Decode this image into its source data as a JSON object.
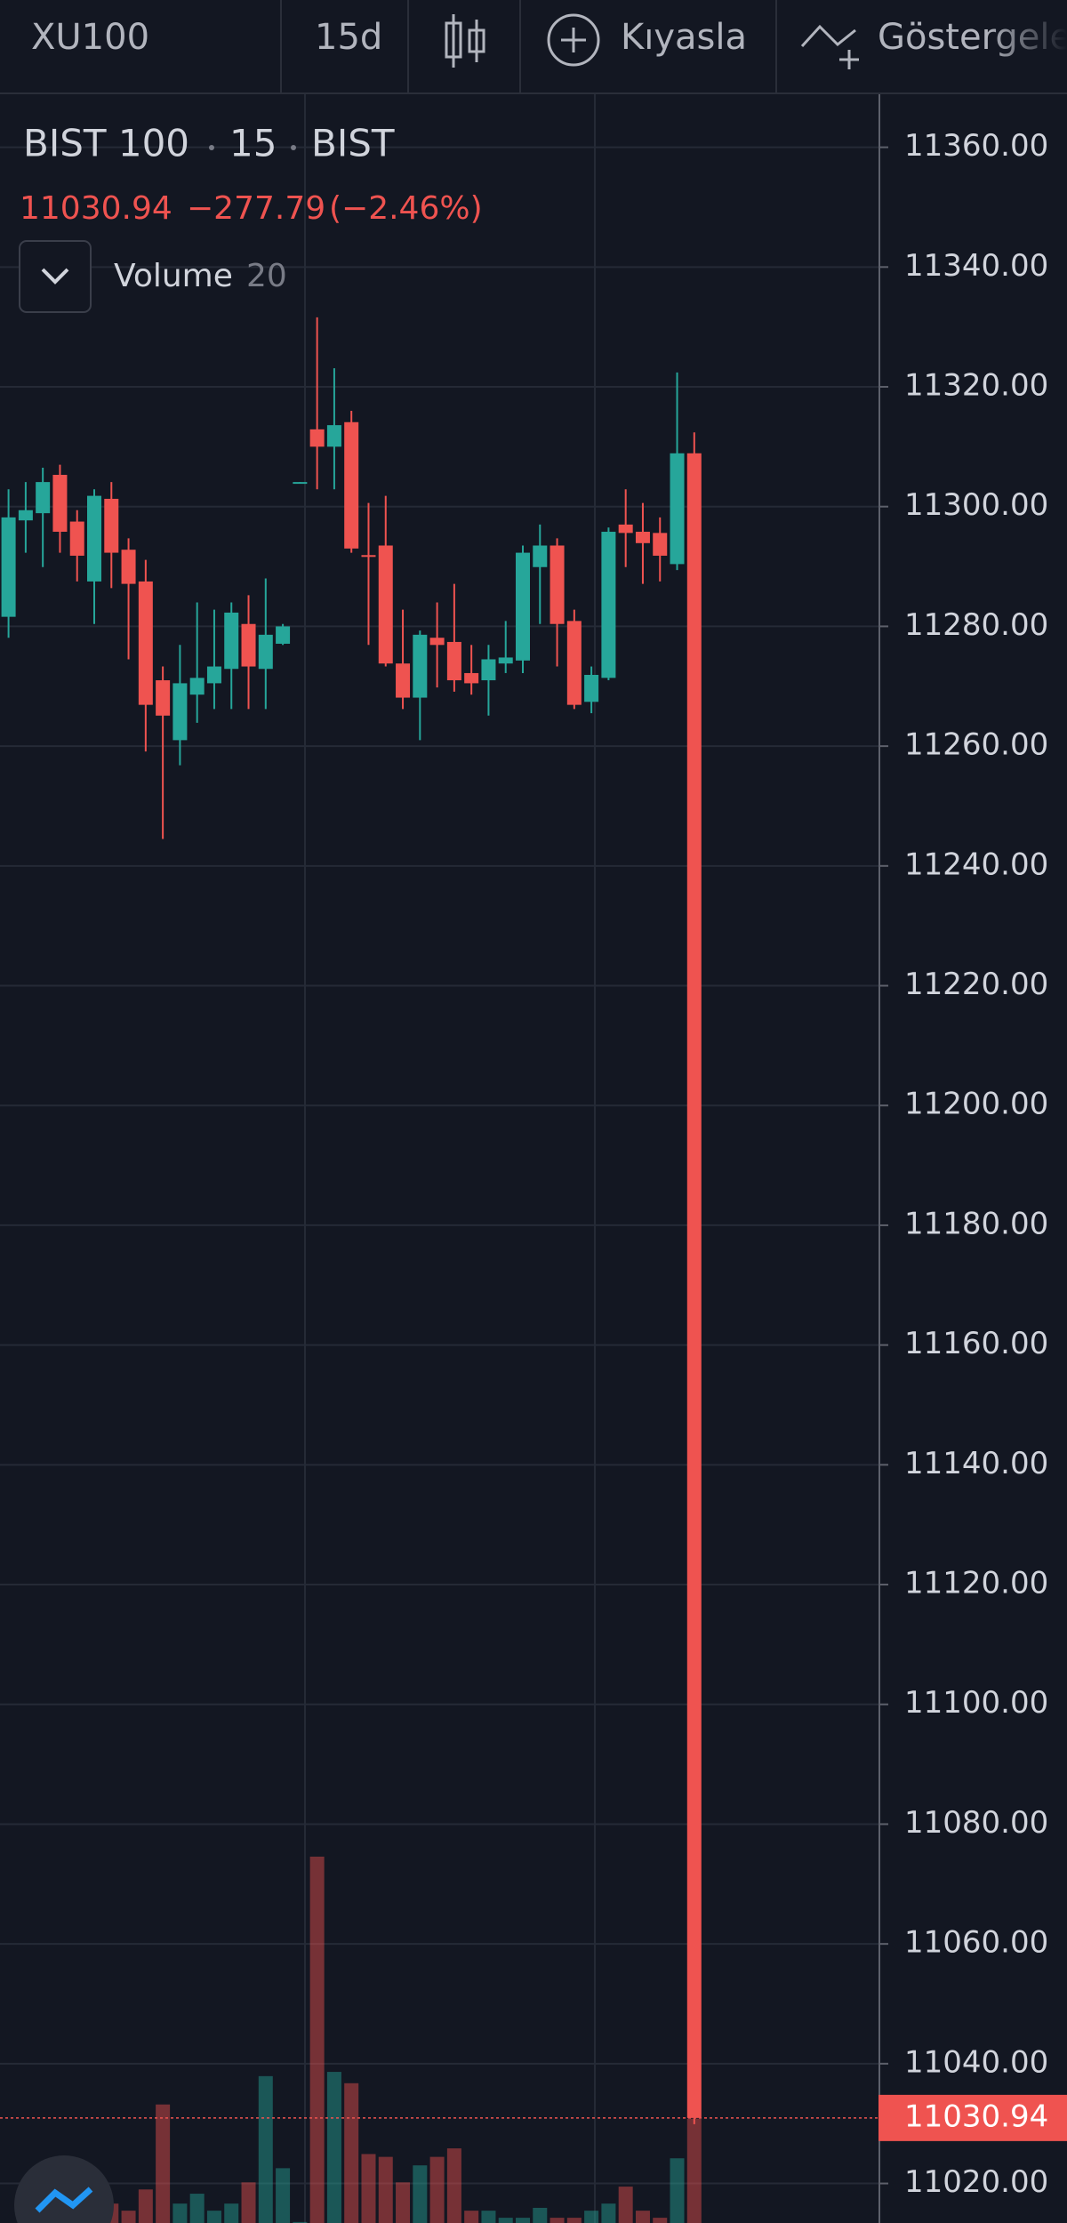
{
  "toolbar": {
    "symbol": "XU100",
    "interval": "15d",
    "compare": "Kıyasla",
    "indicators": "Göstergeler"
  },
  "chart_data": {
    "type": "candlestick",
    "title": "BIST 100",
    "interval": "15",
    "exchange": "BIST",
    "change": "−277.79",
    "change_percent": "(−2.46%)",
    "indicator": "Volume",
    "indicator_length": 20,
    "last_price": {
      "value": 11030.94,
      "label": "11030.94"
    },
    "up_color": "#26a69a",
    "down_color": "#ef5350",
    "grid": true,
    "ylim": [
      11013.4,
      11369.0
    ],
    "yticks": [
      {
        "value": 11020,
        "label": "11020.00"
      },
      {
        "value": 11040,
        "label": "11040.00"
      },
      {
        "value": 11060,
        "label": "11060.00"
      },
      {
        "value": 11080,
        "label": "11080.00"
      },
      {
        "value": 11100,
        "label": "11100.00"
      },
      {
        "value": 11120,
        "label": "11120.00"
      },
      {
        "value": 11140,
        "label": "11140.00"
      },
      {
        "value": 11160,
        "label": "11160.00"
      },
      {
        "value": 11180,
        "label": "11180.00"
      },
      {
        "value": 11200,
        "label": "11200.00"
      },
      {
        "value": 11220,
        "label": "11220.00"
      },
      {
        "value": 11240,
        "label": "11240.00"
      },
      {
        "value": 11260,
        "label": "11260.00"
      },
      {
        "value": 11280,
        "label": "11280.00"
      },
      {
        "value": 11300,
        "label": "11300.00"
      },
      {
        "value": 11320,
        "label": "11320.00"
      },
      {
        "value": 11340,
        "label": "11340.00"
      },
      {
        "value": 11360,
        "label": "11360.00"
      }
    ],
    "open": [
      11281.6,
      11297.7,
      11298.9,
      11305.3,
      11297.5,
      11287.5,
      11301.3,
      11292.8,
      11287.5,
      11271.0,
      11261.0,
      11268.6,
      11270.5,
      11272.9,
      11280.4,
      11272.9,
      11277.1,
      11304.0,
      11312.9,
      11310.0,
      11314.1,
      11291.9,
      11293.5,
      11273.8,
      11268.1,
      11278.1,
      11277.4,
      11272.2,
      11271.0,
      11273.8,
      11274.3,
      11289.9,
      11293.5,
      11280.9,
      11267.4,
      11271.4,
      11297.0,
      11295.8,
      11295.6,
      11290.4,
      11308.9
    ],
    "high": [
      11302.9,
      11304.1,
      11306.5,
      11307.0,
      11299.4,
      11302.9,
      11304.1,
      11294.7,
      11291.1,
      11273.3,
      11276.9,
      11284.0,
      11282.8,
      11284.0,
      11285.2,
      11288.0,
      11280.4,
      11304.1,
      11331.6,
      11323.1,
      11316.0,
      11300.6,
      11301.8,
      11282.8,
      11279.3,
      11284.0,
      11287.1,
      11276.9,
      11276.9,
      11280.9,
      11293.5,
      11297.0,
      11294.7,
      11282.8,
      11273.3,
      11296.5,
      11302.9,
      11300.6,
      11298.2,
      11322.4,
      11312.4
    ],
    "low": [
      11278.1,
      11292.3,
      11289.9,
      11292.3,
      11287.5,
      11280.4,
      11286.4,
      11274.5,
      11259.1,
      11244.5,
      11256.8,
      11263.9,
      11266.2,
      11266.2,
      11266.2,
      11266.2,
      11276.9,
      11304.0,
      11302.9,
      11302.9,
      11292.3,
      11276.9,
      11273.3,
      11266.2,
      11261.0,
      11269.8,
      11269.1,
      11268.6,
      11265.1,
      11272.2,
      11272.2,
      11280.4,
      11273.3,
      11266.2,
      11265.5,
      11271.0,
      11289.9,
      11287.1,
      11287.5,
      11289.4,
      11029.9
    ],
    "close": [
      11298.2,
      11299.4,
      11304.1,
      11295.8,
      11291.8,
      11301.8,
      11292.3,
      11287.1,
      11266.9,
      11265.1,
      11270.5,
      11271.4,
      11273.3,
      11282.3,
      11273.3,
      11278.6,
      11280.0,
      11304.1,
      11310.0,
      11313.6,
      11293.0,
      11291.6,
      11273.8,
      11268.1,
      11278.6,
      11276.9,
      11271.0,
      11270.5,
      11274.5,
      11274.8,
      11292.3,
      11293.5,
      11280.4,
      11266.9,
      11271.9,
      11295.8,
      11295.6,
      11293.9,
      11291.8,
      11308.9,
      11030.94
    ],
    "volume": [
      8,
      6,
      10,
      14,
      20,
      18,
      25,
      20,
      35,
      95,
      25,
      32,
      20,
      25,
      40,
      115,
      50,
      12,
      270,
      118,
      110,
      60,
      58,
      40,
      52,
      58,
      64,
      20,
      20,
      15,
      15,
      22,
      15,
      15,
      20,
      25,
      37,
      20,
      15,
      57,
      85
    ]
  }
}
